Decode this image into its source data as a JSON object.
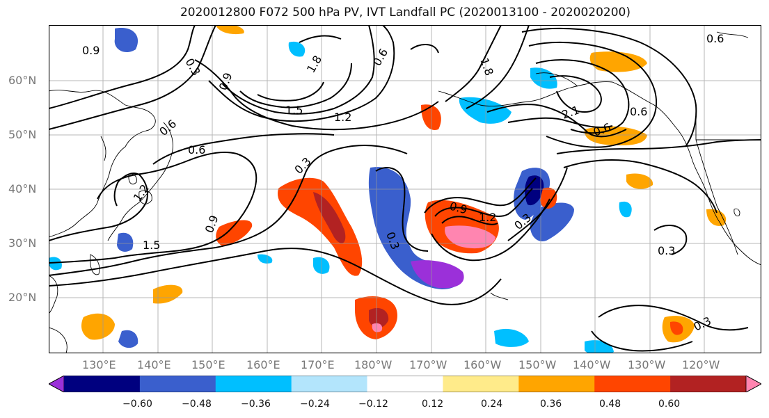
{
  "title": "2020012800 F072 500 hPa PV, IVT Landfall PC (2020013100 - 2020020200)",
  "lat_labels": [
    "60°N",
    "50°N",
    "40°N",
    "30°N",
    "20°N"
  ],
  "lon_labels": [
    "130°E",
    "140°E",
    "150°E",
    "160°E",
    "170°E",
    "180°W",
    "170°W",
    "160°W",
    "150°W",
    "140°W",
    "130°W",
    "120°W"
  ],
  "contour_labels": [
    "0.9",
    "0.3",
    "1.8",
    "1.5",
    "1.2",
    "0.9",
    "0.6",
    "0.6",
    "1.2",
    "1.5",
    "0.9",
    "0.3",
    "0.3",
    "0.9",
    "1.2",
    "0.3",
    "1.8",
    "2.1",
    "0.6",
    "0.6",
    "0.3",
    "0.3",
    "0.6",
    "0.6"
  ],
  "colorbar": {
    "ticks": [
      "−0.60",
      "−0.48",
      "−0.36",
      "−0.24",
      "−0.12",
      "0.12",
      "0.24",
      "0.36",
      "0.48",
      "0.60"
    ],
    "colors": [
      "#9b30d9",
      "#00007f",
      "#3a5fcd",
      "#00bfff",
      "#b3e5fc",
      "#ffffff",
      "#ffeb8a",
      "#ffa500",
      "#ff4500",
      "#b22222",
      "#ff85b0"
    ]
  }
}
